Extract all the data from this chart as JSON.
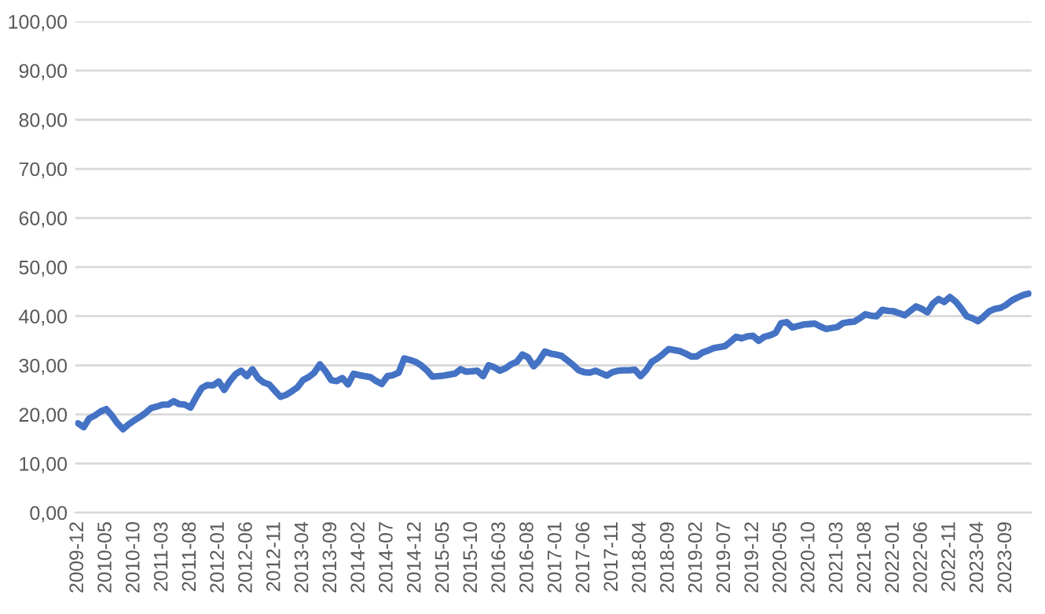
{
  "chart_data": {
    "type": "line",
    "categories": [
      "2009-12",
      null,
      null,
      null,
      null,
      "2010-05",
      null,
      null,
      null,
      null,
      "2010-10",
      null,
      null,
      null,
      null,
      "2011-03",
      null,
      null,
      null,
      null,
      "2011-08",
      null,
      null,
      null,
      null,
      "2012-01",
      null,
      null,
      null,
      null,
      "2012-06",
      null,
      null,
      null,
      null,
      "2012-11",
      null,
      null,
      null,
      null,
      "2013-04",
      null,
      null,
      null,
      null,
      "2013-09",
      null,
      null,
      null,
      null,
      "2014-02",
      null,
      null,
      null,
      null,
      "2014-07",
      null,
      null,
      null,
      null,
      "2014-12",
      null,
      null,
      null,
      null,
      "2015-05",
      null,
      null,
      null,
      null,
      "2015-10",
      null,
      null,
      null,
      null,
      "2016-03",
      null,
      null,
      null,
      null,
      "2016-08",
      null,
      null,
      null,
      null,
      "2017-01",
      null,
      null,
      null,
      null,
      "2017-06",
      null,
      null,
      null,
      null,
      "2017-11",
      null,
      null,
      null,
      null,
      "2018-04",
      null,
      null,
      null,
      null,
      "2018-09",
      null,
      null,
      null,
      null,
      "2019-02",
      null,
      null,
      null,
      null,
      "2019-07",
      null,
      null,
      null,
      null,
      "2019-12",
      null,
      null,
      null,
      null,
      "2020-05",
      null,
      null,
      null,
      null,
      "2020-10",
      null,
      null,
      null,
      null,
      "2021-03",
      null,
      null,
      null,
      null,
      "2021-08",
      null,
      null,
      null,
      null,
      "2022-01",
      null,
      null,
      null,
      null,
      "2022-06",
      null,
      null,
      null,
      null,
      "2022-11",
      null,
      null,
      null,
      null,
      "2023-04",
      null,
      null,
      null,
      null,
      "2023-09",
      null,
      null,
      null,
      null
    ],
    "series": [
      {
        "color": "#4472c4",
        "values": [
          18.2,
          17.4,
          19.2,
          19.8,
          20.6,
          21.1,
          19.8,
          18.2,
          17.0,
          18.0,
          18.8,
          19.5,
          20.3,
          21.3,
          21.6,
          22.0,
          22.0,
          22.7,
          22.1,
          22.0,
          21.4,
          23.5,
          25.4,
          26.0,
          25.9,
          26.7,
          25.0,
          26.8,
          28.2,
          28.9,
          27.8,
          29.2,
          27.4,
          26.5,
          26.1,
          24.8,
          23.6,
          24.0,
          24.7,
          25.5,
          27.0,
          27.6,
          28.5,
          30.2,
          28.8,
          27.0,
          26.8,
          27.4,
          26.1,
          28.3,
          28.0,
          27.8,
          27.6,
          26.8,
          26.2,
          27.8,
          28.0,
          28.5,
          31.4,
          31.1,
          30.7,
          30.0,
          29.0,
          27.7,
          27.8,
          27.9,
          28.1,
          28.3,
          29.2,
          28.7,
          28.8,
          28.9,
          27.8,
          30.0,
          29.6,
          28.9,
          29.4,
          30.2,
          30.7,
          32.2,
          31.6,
          29.8,
          31.0,
          32.8,
          32.4,
          32.2,
          31.9,
          31.0,
          30.1,
          29.0,
          28.6,
          28.5,
          28.9,
          28.4,
          27.9,
          28.6,
          28.9,
          29.0,
          29.0,
          29.1,
          27.8,
          29.0,
          30.7,
          31.4,
          32.3,
          33.3,
          33.1,
          32.9,
          32.4,
          31.8,
          31.8,
          32.6,
          33.0,
          33.5,
          33.7,
          33.9,
          34.8,
          35.8,
          35.5,
          35.9,
          36.0,
          35.0,
          35.8,
          36.1,
          36.6,
          38.6,
          38.8,
          37.7,
          38.0,
          38.3,
          38.4,
          38.5,
          37.9,
          37.4,
          37.6,
          37.8,
          38.6,
          38.8,
          38.9,
          39.6,
          40.4,
          40.1,
          40.0,
          41.3,
          41.1,
          41.0,
          40.6,
          40.2,
          41.1,
          42.0,
          41.5,
          40.8,
          42.6,
          43.5,
          42.9,
          43.9,
          43.0,
          41.6,
          40.0,
          39.6,
          39.0,
          39.9,
          41.0,
          41.5,
          41.7,
          42.3,
          43.2,
          43.8,
          44.3,
          44.6
        ]
      }
    ],
    "ylim": [
      0,
      100
    ],
    "yticks": [
      {
        "value": 0,
        "label": "0,00"
      },
      {
        "value": 10,
        "label": "10,00"
      },
      {
        "value": 20,
        "label": "20,00"
      },
      {
        "value": 30,
        "label": "30,00"
      },
      {
        "value": 40,
        "label": "40,00"
      },
      {
        "value": 50,
        "label": "50,00"
      },
      {
        "value": 60,
        "label": "60,00"
      },
      {
        "value": 70,
        "label": "70,00"
      },
      {
        "value": 80,
        "label": "80,00"
      },
      {
        "value": 90,
        "label": "90,00"
      },
      {
        "value": 100,
        "label": "100,00"
      }
    ],
    "grid": "y",
    "line_style": "solid"
  }
}
